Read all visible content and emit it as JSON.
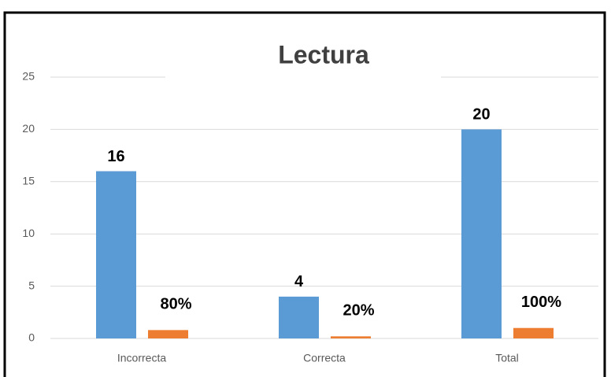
{
  "chart_data": {
    "type": "bar",
    "title": "Lectura",
    "categories": [
      "Incorrecta",
      "Correcta",
      "Total"
    ],
    "series": [
      {
        "color": "#5b9bd5",
        "values": [
          16,
          4,
          20
        ]
      },
      {
        "color": "#ed7d31",
        "values": [
          0.8,
          0.2,
          1
        ],
        "value_labels": [
          "80%",
          "20%",
          "100%"
        ]
      }
    ],
    "ylim": [
      0,
      25
    ],
    "yticks": [
      0,
      5,
      10,
      15,
      20,
      25
    ],
    "grid": true
  }
}
